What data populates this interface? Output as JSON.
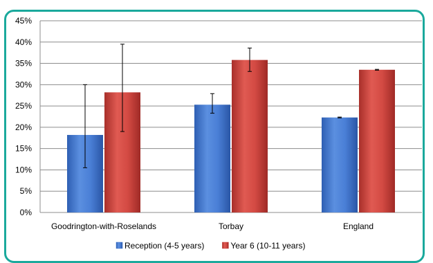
{
  "chart_data": {
    "type": "bar",
    "categories": [
      "Goodrington-with-Roselands",
      "Torbay",
      "England"
    ],
    "series": [
      {
        "name": "Reception (4-5 years)",
        "values": [
          18.2,
          25.3,
          22.3
        ],
        "error_low": [
          10.5,
          23.3,
          22.2
        ],
        "error_high": [
          30.0,
          27.9,
          22.4
        ],
        "color": "#3f73c9"
      },
      {
        "name": "Year 6 (10-11 years)",
        "values": [
          28.2,
          35.8,
          33.5
        ],
        "error_low": [
          19.0,
          33.1,
          33.4
        ],
        "error_high": [
          39.5,
          38.6,
          33.6
        ],
        "color": "#c8403a"
      }
    ],
    "ylim": [
      0,
      45
    ],
    "y_ticks": [
      "0%",
      "5%",
      "10%",
      "15%",
      "20%",
      "25%",
      "30%",
      "35%",
      "40%",
      "45%"
    ],
    "y_tick_values": [
      0,
      5,
      10,
      15,
      20,
      25,
      30,
      35,
      40,
      45
    ],
    "grid": true,
    "legend": "bottom"
  }
}
